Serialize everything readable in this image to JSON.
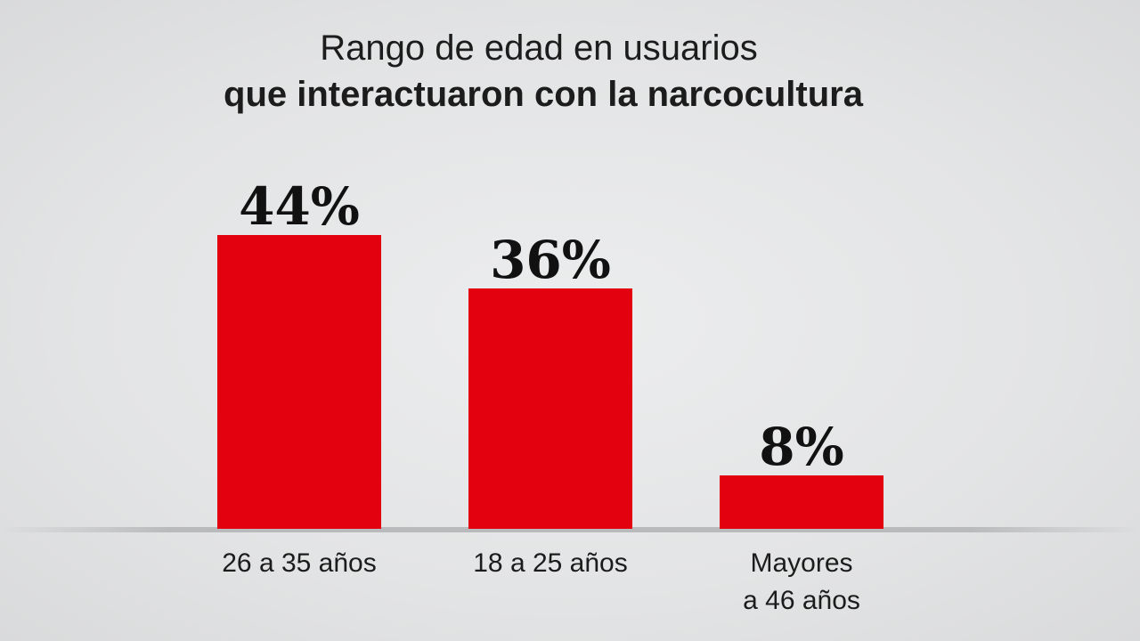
{
  "title_line1": "Rango de edad en usuarios",
  "title_line2": "que interactuaron con la narcocultura",
  "colors": {
    "bar": "#e3000f",
    "baseline": "#b9babb",
    "background": "#e3e4e5"
  },
  "chart_data": {
    "type": "bar",
    "title": "Rango de edad en usuarios que interactuaron con la narcocultura",
    "xlabel": "",
    "ylabel": "",
    "unit": "%",
    "grid": false,
    "legend": "none",
    "ylim": [
      0,
      50
    ],
    "categories": [
      [
        "26 a 35 años"
      ],
      [
        "18 a 25 años"
      ],
      [
        "Mayores",
        "a 46 años"
      ]
    ],
    "values": [
      44,
      36,
      8
    ],
    "data_labels": [
      "44%",
      "36%",
      "8%"
    ]
  }
}
